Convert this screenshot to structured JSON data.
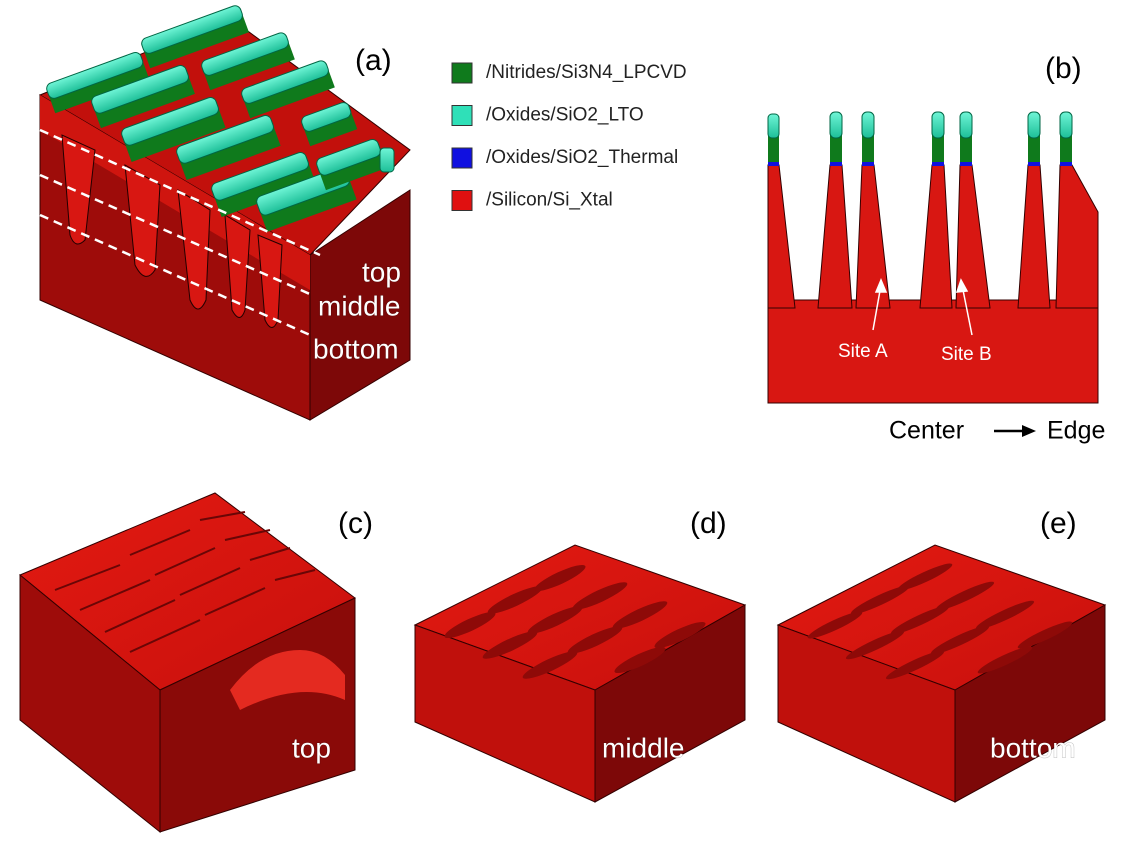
{
  "legend": [
    {
      "label": "/Nitrides/Si3N4_LPCVD",
      "color": "#0f7a1c"
    },
    {
      "label": "/Oxides/SiO2_LTO",
      "color": "#2fe0b8"
    },
    {
      "label": "/Oxides/SiO2_Thermal",
      "color": "#1010e0"
    },
    {
      "label": "/Silicon/Si_Xtal",
      "color": "#e01010"
    }
  ],
  "panels": [
    {
      "label": "(a)",
      "annotations": [
        "top",
        "middle",
        "bottom"
      ]
    },
    {
      "label": "(b)",
      "annotations": [
        "Site A",
        "Site B"
      ],
      "direction": {
        "from": "Center",
        "to": "Edge"
      }
    },
    {
      "label": "(c)",
      "caption": "top"
    },
    {
      "label": "(d)",
      "caption": "middle"
    },
    {
      "label": "(e)",
      "caption": "bottom"
    }
  ]
}
